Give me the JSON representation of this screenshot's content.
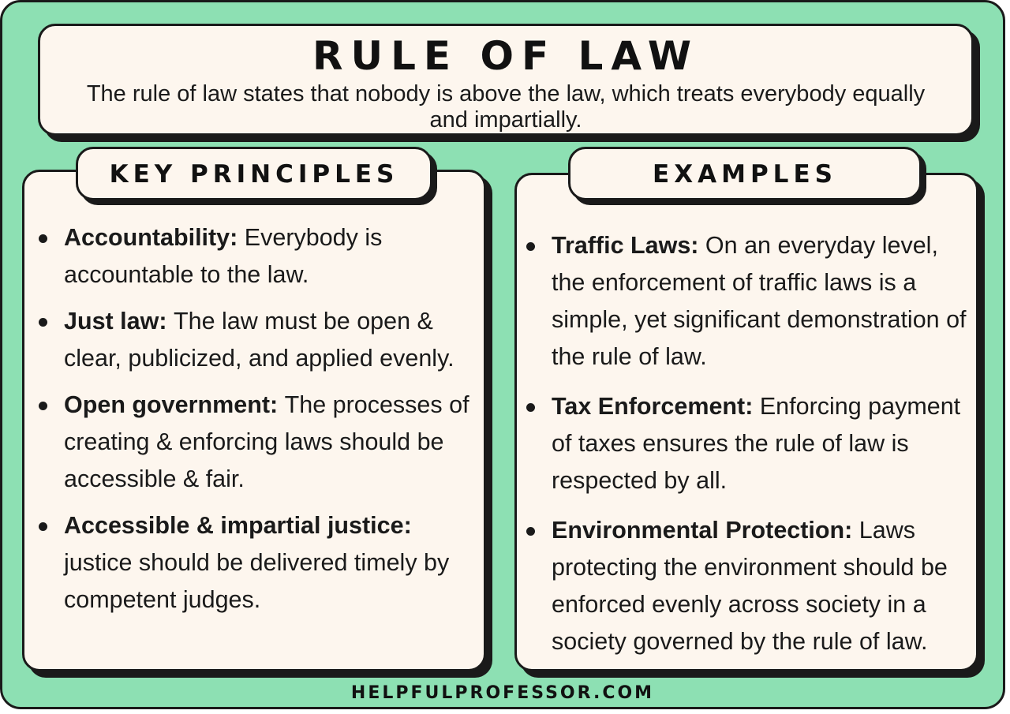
{
  "header": {
    "title": "RULE OF LAW",
    "subtitle": "The rule of law states that nobody is above the law, which treats everybody equally and impartially."
  },
  "key_principles": {
    "heading": "KEY PRINCIPLES",
    "items": [
      {
        "term": "Accountability:",
        "text": "Everybody is accountable to the law."
      },
      {
        "term": "Just law:",
        "text": "The law must be open & clear, publicized, and applied evenly."
      },
      {
        "term": "Open government:",
        "text": "The processes of creating & enforcing laws should be accessible & fair."
      },
      {
        "term": "Accessible & impartial justice:",
        "text": "justice should be delivered timely by competent judges."
      }
    ]
  },
  "examples": {
    "heading": "EXAMPLES",
    "items": [
      {
        "term": "Traffic Laws:",
        "text": "On an everyday level, the enforcement of traffic laws is a simple, yet significant demonstration of the rule of law."
      },
      {
        "term": "Tax Enforcement:",
        "text": "Enforcing payment of taxes ensures the rule of law is respected by all."
      },
      {
        "term": "Environmental Protection:",
        "text": "Laws protecting the environment should be enforced evenly across society in a society governed by the rule of law."
      }
    ]
  },
  "footer": {
    "site": "HELPFULPROFESSOR.COM"
  },
  "colors": {
    "background": "#8de0b3",
    "card": "#fdf6ee",
    "ink": "#1a1a1a"
  }
}
